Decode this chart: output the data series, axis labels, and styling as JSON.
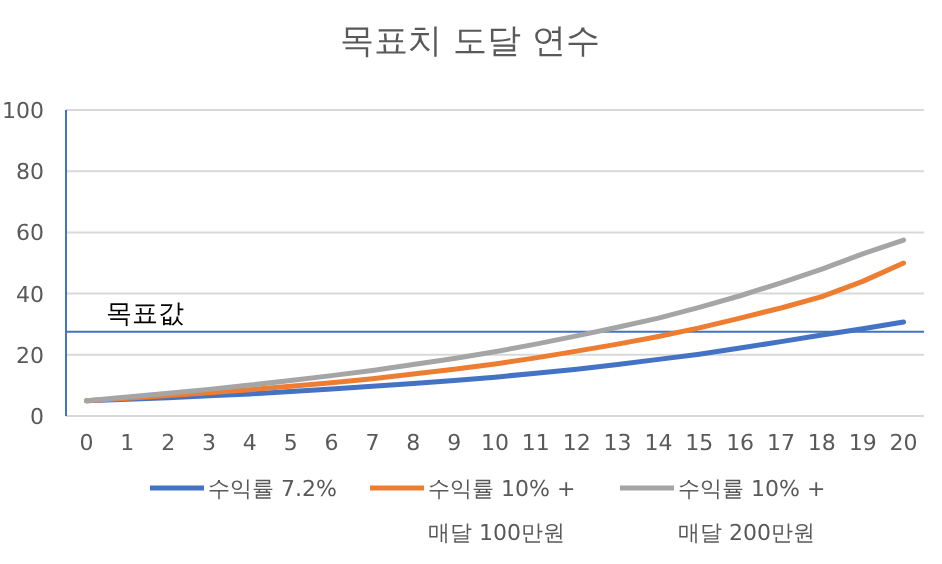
{
  "chart_data": {
    "type": "line",
    "title": "목표치 도달 연수",
    "x": [
      0,
      1,
      2,
      3,
      4,
      5,
      6,
      7,
      8,
      9,
      10,
      11,
      12,
      13,
      14,
      15,
      16,
      17,
      18,
      19,
      20
    ],
    "xlim": [
      -0.5,
      20.5
    ],
    "xticks": [
      0,
      1,
      2,
      3,
      4,
      5,
      6,
      7,
      8,
      9,
      10,
      11,
      12,
      13,
      14,
      15,
      16,
      17,
      18,
      19,
      20
    ],
    "series": [
      {
        "name": "수익률 7.2%",
        "color": "#4472c4",
        "values": [
          5,
          5.5,
          6,
          6.6,
          7.2,
          8,
          8.8,
          9.7,
          10.6,
          11.6,
          12.7,
          14,
          15.3,
          16.8,
          18.5,
          20.2,
          22.2,
          24.3,
          26.5,
          28.5,
          30.7
        ]
      },
      {
        "name": "수익률 10% + 매달 100만원",
        "color": "#ed7d31",
        "values": [
          5,
          5.8,
          6.7,
          7.6,
          8.6,
          9.7,
          10.9,
          12.2,
          13.7,
          15.3,
          17,
          19,
          21.2,
          23.5,
          26,
          28.8,
          32,
          35.3,
          39,
          44,
          50
        ]
      },
      {
        "name": "수익률 10% + 매달 200만원",
        "color": "#a5a5a5",
        "values": [
          5,
          6.2,
          7.4,
          8.7,
          10.1,
          11.6,
          13.2,
          14.9,
          16.8,
          18.8,
          21,
          23.5,
          26.2,
          29,
          32,
          35.5,
          39.3,
          43.5,
          48,
          53,
          57.5
        ]
      }
    ],
    "ylim": [
      0,
      100
    ],
    "yticks": [
      0,
      20,
      40,
      60,
      80,
      100
    ],
    "grid": "y",
    "legend": "bottom",
    "marker": "none",
    "line_style": "solid",
    "ref_lines": [
      {
        "axis": "y",
        "value": 27.5,
        "label": "목표값",
        "color": "#4472c4"
      }
    ]
  }
}
